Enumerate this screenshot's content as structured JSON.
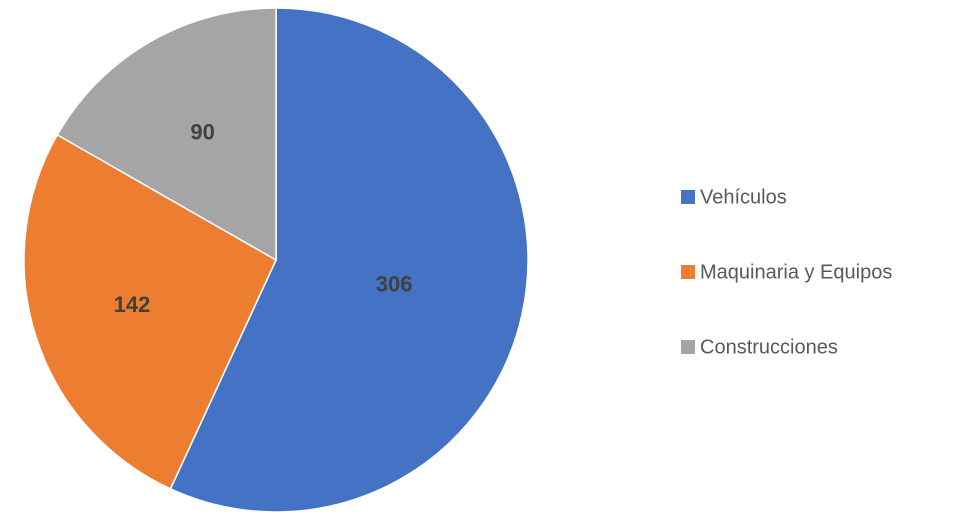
{
  "chart_data": {
    "type": "pie",
    "categories": [
      "Vehículos",
      "Maquinaria y Equipos",
      "Construcciones"
    ],
    "values": [
      306,
      142,
      90
    ],
    "colors": [
      "#4472c4",
      "#ed7d31",
      "#a5a5a5"
    ],
    "legend": "right"
  }
}
